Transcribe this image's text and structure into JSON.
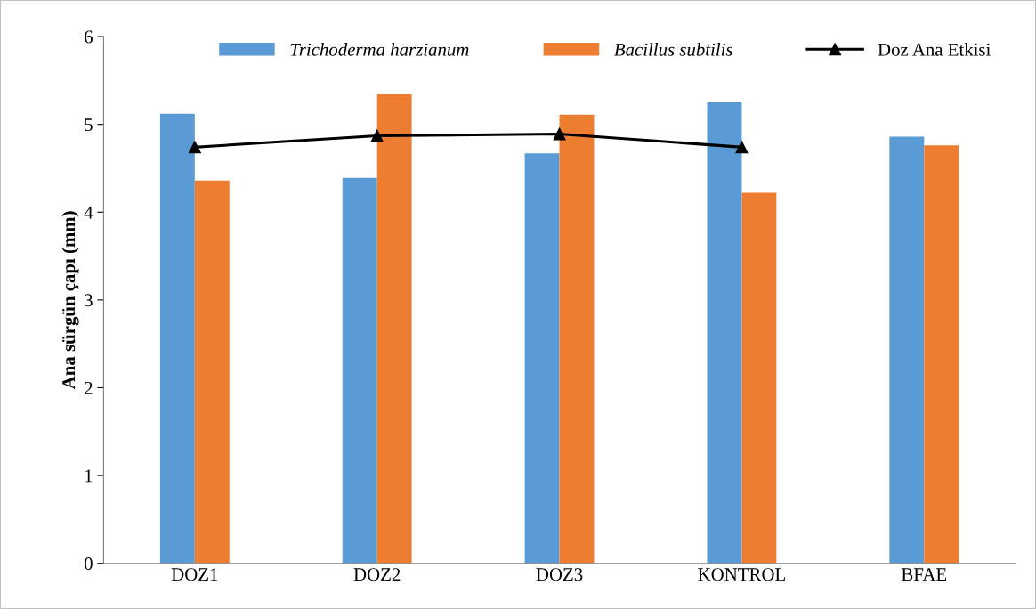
{
  "chart_data": {
    "type": "bar",
    "ylabel": "Ana sürgün çapı (mm)",
    "categories": [
      "DOZ1",
      "DOZ2",
      "DOZ3",
      "KONTROL",
      "BFAE"
    ],
    "series": [
      {
        "name": "Trichoderma harzianum",
        "color": "#5b9bd5",
        "values": [
          5.12,
          4.39,
          4.67,
          5.25,
          4.86
        ]
      },
      {
        "name": "Bacillus subtilis",
        "color": "#ed7d31",
        "values": [
          4.36,
          5.34,
          5.11,
          4.22,
          4.76
        ]
      },
      {
        "name": "Doz Ana Etkisi",
        "type": "line",
        "color": "#000000",
        "marker": "triangle",
        "values": [
          4.74,
          4.87,
          4.89,
          4.74,
          null
        ]
      }
    ],
    "ylim": [
      0,
      6
    ],
    "yticks": [
      0,
      1,
      2,
      3,
      4,
      5,
      6
    ],
    "grid": false,
    "legend": "top"
  }
}
